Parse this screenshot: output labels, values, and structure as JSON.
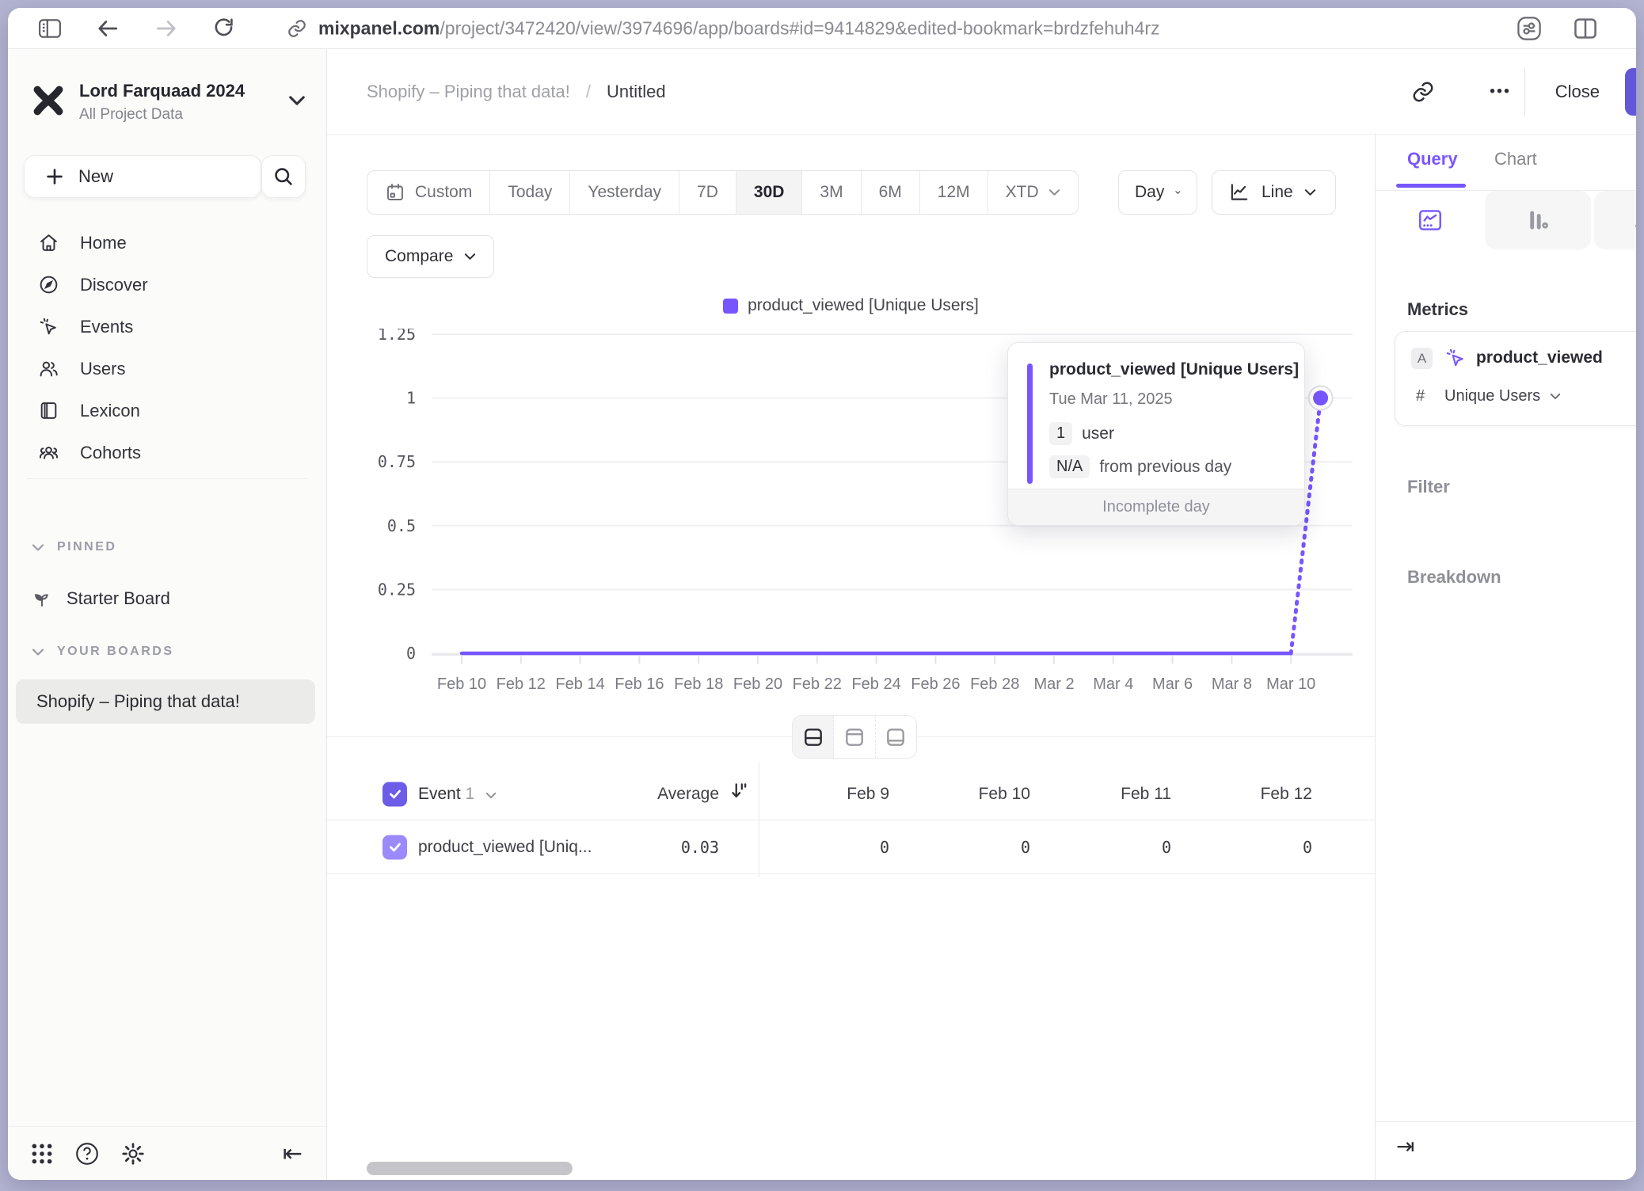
{
  "browser": {
    "url_host": "mixpanel.com",
    "url_rest": "/project/3472420/view/3974696/app/boards#id=9414829&edited-bookmark=brdzfehuh4rz"
  },
  "sidebar": {
    "workspace_name": "Lord Farquaad 2024",
    "workspace_subtitle": "All Project Data",
    "new_label": "New",
    "nav": [
      {
        "label": "Home"
      },
      {
        "label": "Discover"
      },
      {
        "label": "Events"
      },
      {
        "label": "Users"
      },
      {
        "label": "Lexicon"
      },
      {
        "label": "Cohorts"
      }
    ],
    "pinned_heading": "PINNED",
    "starter_board": "Starter Board",
    "your_boards_heading": "YOUR BOARDS",
    "active_board": "Shopify – Piping that data!"
  },
  "board_header": {
    "breadcrumb_board": "Shopify – Piping that data!",
    "breadcrumb_separator": "/",
    "breadcrumb_current": "Untitled",
    "more_label": "•••",
    "close_label": "Close"
  },
  "controls": {
    "date_ranges": [
      "Custom",
      "Today",
      "Yesterday",
      "7D",
      "30D",
      "3M",
      "6M",
      "12M",
      "XTD"
    ],
    "active_range": "30D",
    "granularity_label": "Day",
    "chart_type_label": "Line",
    "compare_label": "Compare"
  },
  "chart_data": {
    "type": "line",
    "title": "",
    "legend": [
      {
        "label": "product_viewed [Unique Users]",
        "color": "#7856ff"
      }
    ],
    "x_start": "Feb 10",
    "x_end": "Mar 11",
    "x_tick_labels": [
      "Feb 10",
      "Feb 12",
      "Feb 14",
      "Feb 16",
      "Feb 18",
      "Feb 20",
      "Feb 22",
      "Feb 24",
      "Feb 26",
      "Feb 28",
      "Mar 2",
      "Mar 4",
      "Mar 6",
      "Mar 8",
      "Mar 10"
    ],
    "x_tick_every_days": 2,
    "values": [
      0,
      0,
      0,
      0,
      0,
      0,
      0,
      0,
      0,
      0,
      0,
      0,
      0,
      0,
      0,
      0,
      0,
      0,
      0,
      0,
      0,
      0,
      0,
      0,
      0,
      0,
      0,
      0,
      0,
      1
    ],
    "incomplete_from_index": 28,
    "y_ticks": [
      0,
      0.25,
      0.5,
      0.75,
      1,
      1.25
    ],
    "ylim": [
      0,
      1.25
    ],
    "xlabel": "",
    "ylabel": "",
    "grid": "horizontal"
  },
  "tooltip": {
    "title": "product_viewed [Unique Users]",
    "date": "Tue Mar 11, 2025",
    "value": "1",
    "value_unit": "user",
    "delta": "N/A",
    "delta_label": "from previous day",
    "footer": "Incomplete day"
  },
  "view_toggle": {
    "modes": [
      "split",
      "chart-only",
      "table-only"
    ],
    "active": "split"
  },
  "table": {
    "event_label": "Event",
    "event_count": "1",
    "average_label": "Average",
    "date_columns": [
      "Feb 9",
      "Feb 10",
      "Feb 11",
      "Feb 12"
    ],
    "rows": [
      {
        "name": "product_viewed [Uniq...",
        "average": "0.03",
        "values": [
          "0",
          "0",
          "0",
          "0"
        ]
      }
    ]
  },
  "query_panel": {
    "tabs": [
      {
        "label": "Query",
        "active": true
      },
      {
        "label": "Chart",
        "active": false
      }
    ],
    "metrics_heading": "Metrics",
    "metric": {
      "letter": "A",
      "name": "product_viewed",
      "agg_symbol": "#",
      "aggregation": "Unique Users"
    },
    "filter_heading": "Filter",
    "breakdown_heading": "Breakdown"
  },
  "colors": {
    "accent": "#7856ff",
    "accent_dark": "#6157d8",
    "row_checkbox": "#9b8afb",
    "header_checkbox": "#6c5ce7",
    "grid_line": "#f0f0f3",
    "axis_text": "#55555d",
    "x_axis_text": "#7b7b84",
    "muted_text": "#8e8e96",
    "red_badge": "#e8604c"
  }
}
